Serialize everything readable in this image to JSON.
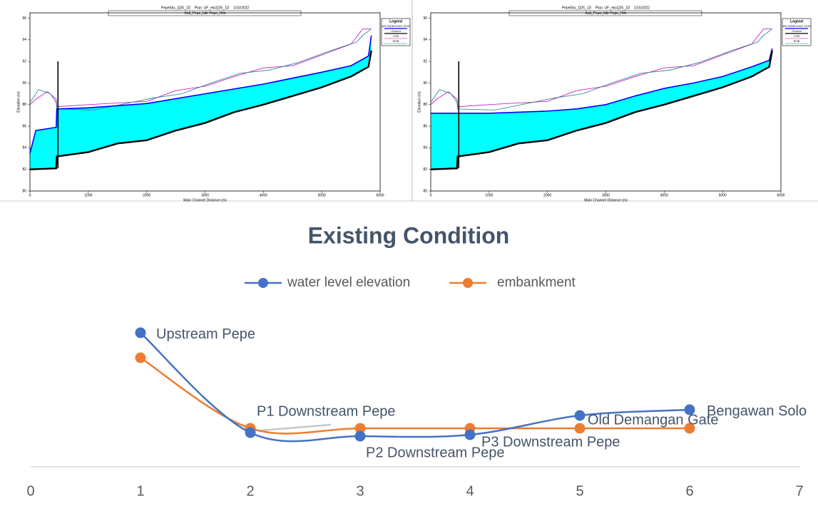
{
  "chart_data": [
    {
      "type": "profile",
      "title": "PepeEks_Q25_1D    Plan: UF_eksQ25_1D    1/15/2022",
      "subtitle": "Kali_Pepe_hilir Pepe_Hilir",
      "x_label": "Main Channel Distance (m)",
      "y_label": "Elevation (m)",
      "legend_title": "Legend",
      "xlim": [
        0,
        6000
      ],
      "xticks": [
        0,
        1000,
        2000,
        3000,
        4000,
        5000,
        6000
      ],
      "ylim": [
        80,
        96.5
      ],
      "yticks": [
        80,
        82,
        84,
        86,
        88,
        90,
        92,
        94,
        96
      ],
      "structure": {
        "x": 480,
        "bottom": 82.1,
        "top": 92
      },
      "series": [
        {
          "name": "WS 01DEC2021 15:00",
          "color": "#0000ff",
          "x": [
            0,
            100,
            450,
            460,
            1000,
            2000,
            3000,
            4000,
            5000,
            5500,
            5800,
            5850
          ],
          "values": [
            83.5,
            85.6,
            85.9,
            87.6,
            87.7,
            88.1,
            89.0,
            89.9,
            91.0,
            91.6,
            92.5,
            94.4
          ]
        },
        {
          "name": "Ground",
          "color": "#000000",
          "x": [
            0,
            450,
            460,
            1000,
            1500,
            2000,
            2500,
            3000,
            3500,
            4000,
            4500,
            5000,
            5500,
            5800,
            5850
          ],
          "values": [
            82.0,
            82.1,
            83.2,
            83.6,
            84.4,
            84.7,
            85.6,
            86.3,
            87.3,
            88.0,
            88.8,
            89.6,
            90.6,
            91.5,
            93.0
          ]
        },
        {
          "name": "LOB",
          "color": "#c000c0",
          "x": [
            0,
            100,
            300,
            450,
            460,
            1000,
            2000,
            2500,
            3000,
            3500,
            4000,
            4500,
            5000,
            5500,
            5700,
            5850
          ],
          "values": [
            88.0,
            88.5,
            89.2,
            88.5,
            87.8,
            88.0,
            88.3,
            89.3,
            89.7,
            90.6,
            91.4,
            91.6,
            92.6,
            93.6,
            95.0,
            95.0
          ]
        },
        {
          "name": "ROB",
          "color": "#208080",
          "x": [
            0,
            150,
            350,
            450,
            460,
            1100,
            2100,
            2600,
            3100,
            3600,
            4100,
            4600,
            5100,
            5600,
            5700,
            5850
          ],
          "values": [
            88.2,
            89.4,
            89.0,
            88.2,
            87.6,
            87.5,
            88.6,
            89.0,
            90.0,
            90.9,
            91.2,
            91.9,
            92.9,
            93.8,
            94.4,
            95.0
          ]
        }
      ]
    },
    {
      "type": "profile",
      "title": "PepeEks_Q25_1D    Plan: UF_eksQ25_1D    1/15/2022",
      "subtitle": "Kali_Pepe_hilir Pepe_Hilir",
      "x_label": "Main Channel Distance (m)",
      "y_label": "Elevation (m)",
      "legend_title": "Legend",
      "xlim": [
        0,
        6000
      ],
      "xticks": [
        0,
        1000,
        2000,
        3000,
        4000,
        5000,
        6000
      ],
      "ylim": [
        80,
        96.5
      ],
      "yticks": [
        80,
        82,
        84,
        86,
        88,
        90,
        92,
        94,
        96
      ],
      "structure": {
        "x": 480,
        "bottom": 82.1,
        "top": 92
      },
      "series": [
        {
          "name": "WS 01DEC2021 15:00",
          "color": "#0000ff",
          "x": [
            0,
            450,
            460,
            1000,
            2000,
            2500,
            3000,
            3500,
            4000,
            4500,
            5000,
            5500,
            5800,
            5850
          ],
          "values": [
            87.2,
            87.2,
            87.2,
            87.2,
            87.4,
            87.6,
            88.0,
            88.8,
            89.5,
            90.0,
            90.6,
            91.5,
            92.1,
            93.2
          ]
        },
        {
          "name": "Ground",
          "color": "#000000",
          "x": [
            0,
            450,
            460,
            1000,
            1500,
            2000,
            2500,
            3000,
            3500,
            4000,
            4500,
            5000,
            5500,
            5800,
            5850
          ],
          "values": [
            82.0,
            82.1,
            83.2,
            83.6,
            84.4,
            84.7,
            85.6,
            86.3,
            87.3,
            88.0,
            88.8,
            89.6,
            90.6,
            91.5,
            93.0
          ]
        },
        {
          "name": "LOB",
          "color": "#c000c0",
          "x": [
            0,
            100,
            300,
            450,
            460,
            1000,
            2000,
            2500,
            3000,
            3500,
            4000,
            4500,
            5000,
            5500,
            5700,
            5850
          ],
          "values": [
            88.0,
            88.5,
            89.2,
            88.5,
            87.8,
            88.0,
            88.3,
            89.3,
            89.7,
            90.6,
            91.4,
            91.6,
            92.6,
            93.6,
            95.0,
            95.0
          ]
        },
        {
          "name": "ROB",
          "color": "#208080",
          "x": [
            0,
            150,
            350,
            450,
            460,
            1100,
            2100,
            2600,
            3100,
            3600,
            4100,
            4600,
            5100,
            5600,
            5700,
            5850
          ],
          "values": [
            88.2,
            89.4,
            89.0,
            88.2,
            87.6,
            87.5,
            88.6,
            89.0,
            90.0,
            90.9,
            91.2,
            91.9,
            92.9,
            93.8,
            94.4,
            95.0
          ]
        }
      ]
    },
    {
      "type": "line",
      "title": "Existing Condition",
      "xlim": [
        0,
        7
      ],
      "xticks": [
        0,
        1,
        2,
        3,
        4,
        5,
        6,
        7
      ],
      "ylim": [
        0,
        10
      ],
      "x": [
        1,
        2,
        3,
        4,
        5,
        6
      ],
      "point_labels": [
        "Upstream Pepe",
        "P1 Downstream Pepe",
        "P2 Downstream Pepe",
        "P3 Downstream Pepe",
        "Old Demangan Gate",
        "Bengawan Solo"
      ],
      "series": [
        {
          "name": "water level elevation",
          "color": "#4472c4",
          "values": [
            8.36,
            2.13,
            1.91,
            2.0,
            3.2,
            3.56
          ]
        },
        {
          "name": "embankment",
          "color": "#ed7d31",
          "values": [
            6.8,
            2.4,
            2.4,
            2.4,
            2.4,
            2.4
          ]
        }
      ]
    }
  ]
}
